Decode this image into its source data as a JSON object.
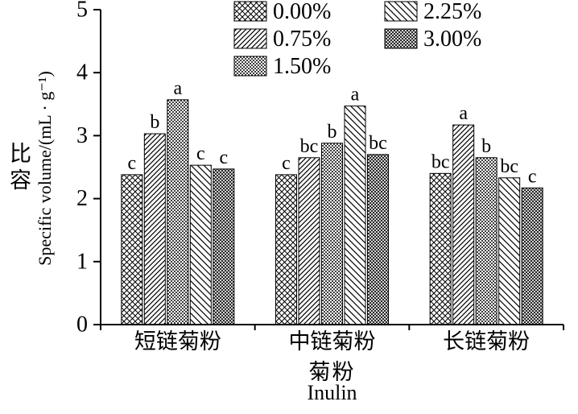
{
  "chart_data": {
    "type": "bar",
    "title": "",
    "ylabel_cn": "比容",
    "ylabel_en": "Specific volume/(mL · g⁻¹)",
    "xlabel_cn": "菊粉",
    "xlabel_en": "Inulin",
    "ylim": [
      0,
      5
    ],
    "yticks": [
      0,
      1,
      2,
      3,
      4,
      5
    ],
    "grid": false,
    "legend_position": "top",
    "categories": [
      "短链菊粉",
      "中链菊粉",
      "长链菊粉"
    ],
    "series": [
      {
        "name": "0.00%",
        "pattern": "crosshatch-coarse",
        "values": [
          2.38,
          2.38,
          2.4
        ],
        "labels": [
          "c",
          "c",
          "bc"
        ]
      },
      {
        "name": "0.75%",
        "pattern": "diagonal-forward",
        "values": [
          3.03,
          2.65,
          3.17
        ],
        "labels": [
          "b",
          "bc",
          "a"
        ]
      },
      {
        "name": "1.50%",
        "pattern": "dots-dense",
        "values": [
          3.57,
          2.88,
          2.65
        ],
        "labels": [
          "a",
          "b",
          "b"
        ]
      },
      {
        "name": "2.25%",
        "pattern": "diagonal-back",
        "values": [
          2.53,
          3.47,
          2.33
        ],
        "labels": [
          "c",
          "a",
          "bc"
        ]
      },
      {
        "name": "3.00%",
        "pattern": "crosshatch-fine",
        "values": [
          2.47,
          2.7,
          2.17
        ],
        "labels": [
          "c",
          "bc",
          "c"
        ]
      }
    ]
  }
}
